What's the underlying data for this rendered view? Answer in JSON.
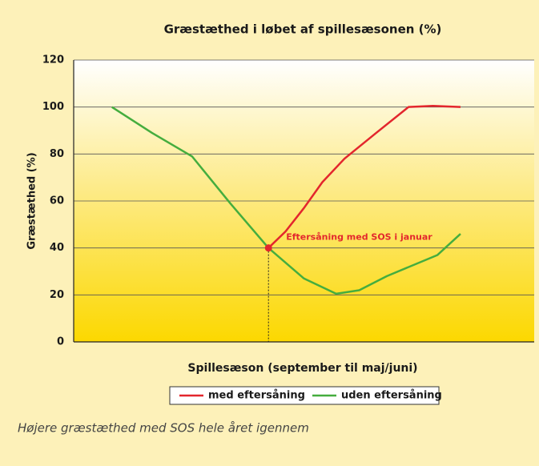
{
  "chart_data": {
    "type": "line",
    "title": "Græstæthed i løbet af spillesæsonen (%)",
    "ylabel": "Græstæthed (%)",
    "xlabel": "Spillesæson (september til maj/juni)",
    "xlim": [
      0,
      100
    ],
    "ylim": [
      0,
      120
    ],
    "yticks": [
      0,
      20,
      40,
      60,
      80,
      100,
      120
    ],
    "grid": true,
    "legend": "bottom",
    "series": [
      {
        "name": "med eftersåning",
        "color": "#e3262d",
        "x": [
          42.3,
          46,
          50,
          54,
          58.8,
          65.7,
          72.7,
          78,
          84
        ],
        "values": [
          40,
          47,
          57,
          68,
          78,
          89,
          100,
          100.5,
          100
        ]
      },
      {
        "name": "uden eftersåning",
        "color": "#45ad3e",
        "x": [
          8.3,
          17,
          25.7,
          34,
          42.3,
          50,
          57,
          62,
          68,
          79,
          84
        ],
        "values": [
          100,
          89,
          79,
          59,
          40,
          27,
          20.5,
          22,
          28,
          37,
          46
        ]
      }
    ],
    "annotation": {
      "text": "Eftersåning med SOS i januar",
      "x": 42.3,
      "y": 40
    },
    "caption": "Højere græstæthed med SOS hele året igennem"
  }
}
